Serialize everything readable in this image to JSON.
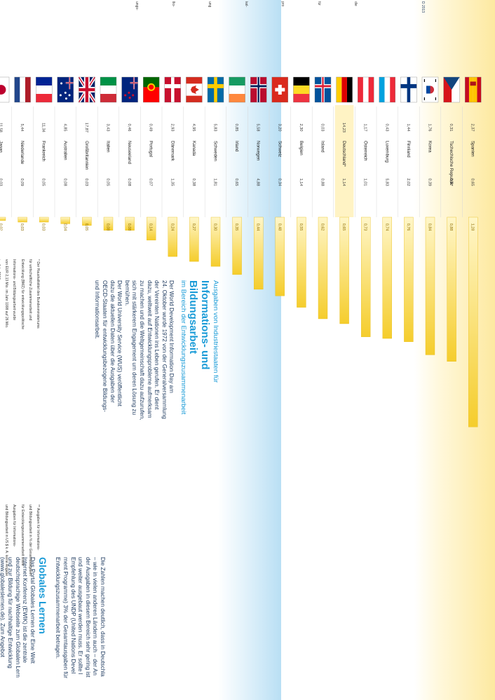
{
  "colors": {
    "bar": "#f5cd2c",
    "bar_light": "#fff2b0",
    "header_band": "#fde9a0",
    "value_blue": "#1a9bd7",
    "text_dark": "#1e3a5f",
    "title_blue": "#1a9bd7"
  },
  "header": {
    "corner": "D 2013",
    "col_labels": [
      "die",
      "für",
      "pro",
      "kel-",
      "ung",
      "llio-",
      "ungs-"
    ]
  },
  "chart_data": {
    "type": "bar",
    "orientation": "horizontal",
    "categories": [
      "Spanien",
      "Tschechische Republik",
      "Korea",
      "Finnland",
      "Luxemburg",
      "Österreich",
      "Deutschland*",
      "Island",
      "Belgien",
      "Schweiz",
      "Norwegen",
      "Irland",
      "Schweden",
      "Kanada",
      "Dänemark",
      "Portugal",
      "Neuseeland",
      "Italien",
      "Großbritannien",
      "Australien",
      "Frankreich",
      "Niederlande",
      "Japan",
      "Griechenland**",
      "USA**"
    ],
    "flags": [
      "es",
      "cz",
      "kr",
      "fi",
      "lu",
      "at",
      "de",
      "is",
      "be",
      "ch",
      "no",
      "ie",
      "se",
      "ca",
      "dk",
      "pt",
      "nz",
      "it",
      "gb",
      "au",
      "fr",
      "nl",
      "jp",
      "gr",
      "us"
    ],
    "col1": [
      "2,37",
      "0,31",
      "1,76",
      "1,44",
      "0,43",
      "1,17",
      "14,23",
      "0,03",
      "2,30",
      "3,20",
      "5,58",
      "0,85",
      "5,83",
      "4,95",
      "2,93",
      "0,49",
      "0,46",
      "3,43",
      "17,87",
      "4,85",
      "11,34",
      "5,44",
      "11,58",
      "0,34",
      "31,50"
    ],
    "col2": [
      "0,65",
      "0,17",
      "0,39",
      "2,02",
      "5,83",
      "1,01",
      "1,14",
      "0,88",
      "1,14",
      "0,34",
      "4,88",
      "0,65",
      "1,81",
      "0,38",
      "1,35",
      "0,07",
      "0,08",
      "0,05",
      "0,03",
      "0,08",
      "0,05",
      "0,09",
      "0,03",
      "k.A.",
      "k.A."
    ],
    "value_labels": [
      "1,28",
      "0,88",
      "0,84",
      "0,76",
      "0,74",
      "0,73",
      "0,65",
      "0,62",
      "0,55",
      "0,48",
      "0,44",
      "0,35",
      "0,30",
      "0,27",
      "0,24",
      "0,14",
      "0,08",
      "0,08",
      "0,05",
      "0,04",
      "0,03",
      "0,03",
      "0,02",
      "k.A.",
      "k.A."
    ],
    "values": [
      1.28,
      0.88,
      0.84,
      0.76,
      0.74,
      0.73,
      0.65,
      0.62,
      0.55,
      0.48,
      0.44,
      0.35,
      0.3,
      0.27,
      0.24,
      0.14,
      0.08,
      0.08,
      0.05,
      0.04,
      0.03,
      0.03,
      0.02,
      null,
      null
    ],
    "highlight": "Deutschland*",
    "xlim": [
      0,
      1.33
    ]
  },
  "article": {
    "kicker": "Ausgaben von Industriestaaten für",
    "title": "Informations- und Bildungsarbeit",
    "subtitle": "im Bereich der Entwicklungszusammenarbeit",
    "intro_lines": [
      "Der World Development Information Day am",
      "24. Oktober wurde 1972 von der Generalversammlung",
      "der Vereinten Nationen ins Leben gerufen. Er dient",
      "dazu, weltweit auf Entwicklungsprobleme aufmerksam",
      "zu machen und die Weltgemeinschaft dazu aufzurufen,",
      "sich mit stärkerem Engagement um deren Lösung zu",
      "bemühen.",
      "Der World University Service (WUS) veröffentlicht",
      "dazu die aktuellen Daten über die Ausgaben der",
      "OECD-Staaten für entwicklungsbezogene Bildungs-",
      "und Informationsarbeit."
    ],
    "top_lines": [
      "Die Zahlen machen deutlich, dass in Deutschla",
      "– wie in vielen anderen Ländern auch – der An",
      "der Ausgaben in diesem Bereich sehr gering ist",
      "und weiter ausgebaut werden muss. Er sollte l",
      "Empfehlung des UNDP (United Nations Devel",
      "ment Programme) 3% der Gesamtausgaben für",
      "Entwicklungszusammenarbeit betragen."
    ],
    "section2_title": "Globales Lernen",
    "section2_lines": [
      "Das Portal Globales Lernen der Eine Welt",
      "Internet Konferenz (EWIK) ist die zentrale",
      "deutschsprachige Webseite zum Globalen Lern",
      "und zur Bildung für nachhaltige Entwicklung",
      "(www.globaleslernen.de). Zum Angebot",
      "gehören kostenlose Unterrichtsmaterialien, Hin-",
      "weise auf Veranstaltungen, Fortbildungen und",
      "Methodenhandbücher sowie Informationen zu",
      "Referentenvermittlung, Nord-Süd-Partnerschaf",
      "und Schulprofilbildung u. v. m. Die Redaktion d",
      "Portals liegt beim WUS."
    ],
    "section3_lines": [
      "Die Informationsstelle Bildungsauftrag Nord-Sü",
      "koordiniert die Global Education Week innerh",
      "Deutschlands (www.globaleducationweek",
      "Die europaweite Woche hat zum Ziel, Themen",
      "Globalen Lernens in die breite Öffentlichkeit z",
      "tragen. Außerdem betreut die Informationsste",
      "die 4-sprachige Online-Datenbank ENGLOB z",
      "europäischen Organisationen des Globalen Ler",
      "nens, eine wertvolle Hilfe bei Recherchearbeite",
      "(www.globaleducation.de)."
    ],
    "section4_lines": [
      "Das Portal „Deutsche Länder in der Entwicklu",
      "politik“ ist das zentrale Informationsportal zu d",
      "Aktivitäten der 16 Deutschen Länder im Berei",
      "Entwicklungspolitik und entwicklungspolitische",
      "Bildungs- und Informationsarbeit (www.",
      "entwicklungspolitik-deutsche-länder"
    ]
  },
  "footnotes": {
    "note1_lines": [
      "* Der Haushaltstitel des Bundesministeriums",
      "für wirtschaftliche Zusammenarbeit und",
      "Entwicklung (BMZ) für entwicklungspolitische",
      "Informations- und Bildungsarbeit wurde",
      "von EUR 2,13 Mio. im Jahr 1998 auf 26 Mio.",
      "im Jahr 2013."
    ],
    "note2_lines": [
      "** Ausgaben für Informations-",
      "und Bildungsarbeit in % der Gesamtausgaben",
      "für Entwicklungszusammenarbeit sowie",
      "Ausgaben für Informations-",
      "und Bildungsarbeit in US $ k. A. keine Angabe"
    ]
  }
}
